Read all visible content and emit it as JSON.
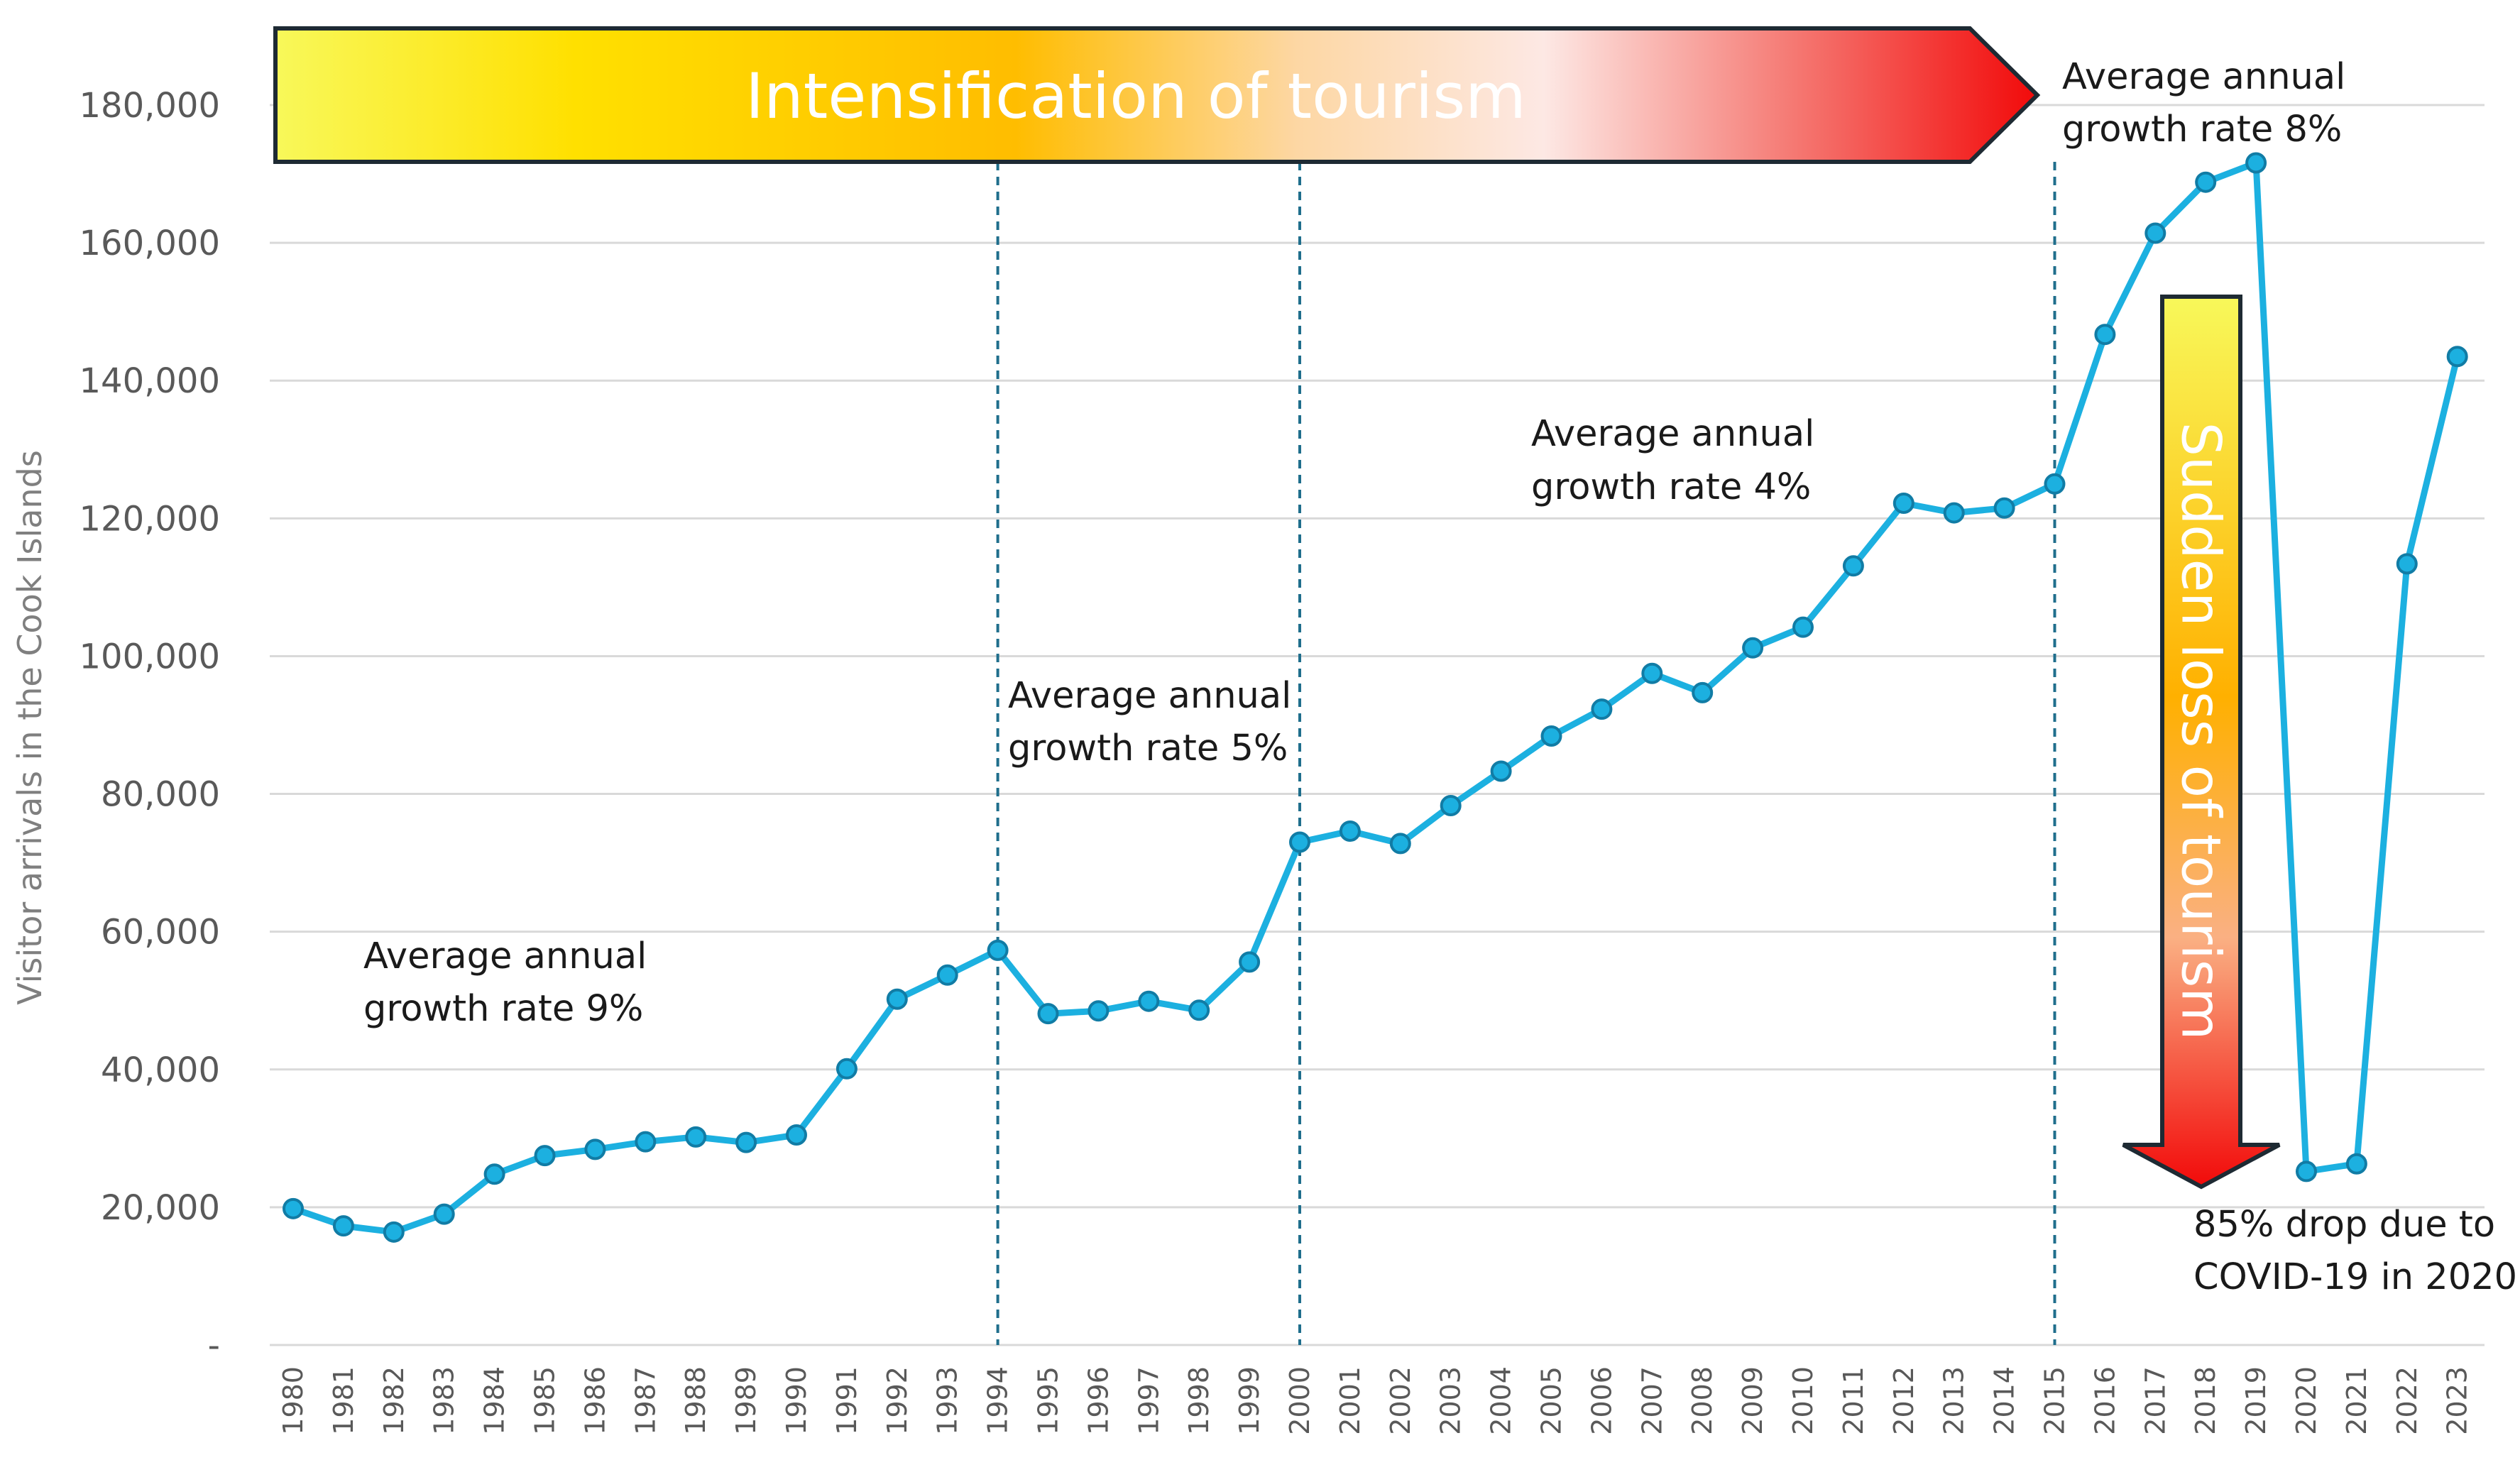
{
  "chart_data": {
    "type": "line",
    "title": "",
    "xlabel": "",
    "ylabel": "Visitor arrivals in the Cook Islands",
    "ylim": [
      0,
      190000
    ],
    "yticks": [
      0,
      20000,
      40000,
      60000,
      80000,
      100000,
      120000,
      140000,
      160000,
      180000
    ],
    "ytick_labels": [
      "-",
      "20,000",
      "40,000",
      "60,000",
      "80,000",
      "100,000",
      "120,000",
      "140,000",
      "160,000",
      "180,000"
    ],
    "grid": true,
    "categories": [
      "1980",
      "1981",
      "1982",
      "1983",
      "1984",
      "1985",
      "1986",
      "1987",
      "1988",
      "1989",
      "1990",
      "1991",
      "1992",
      "1993",
      "1994",
      "1995",
      "1996",
      "1997",
      "1998",
      "1999",
      "2000",
      "2001",
      "2002",
      "2003",
      "2004",
      "2005",
      "2006",
      "2007",
      "2008",
      "2009",
      "2010",
      "2011",
      "2012",
      "2013",
      "2014",
      "2015",
      "2016",
      "2017",
      "2018",
      "2019",
      "2020",
      "2021",
      "2022",
      "2023"
    ],
    "series": [
      {
        "name": "Visitor arrivals",
        "color": "#1CB0E0",
        "values": [
          19800,
          17300,
          16400,
          19000,
          24800,
          27500,
          28400,
          29500,
          30200,
          29400,
          30500,
          40100,
          50200,
          53700,
          57300,
          48100,
          48500,
          49900,
          48600,
          55600,
          73000,
          74600,
          72800,
          78300,
          83300,
          88400,
          92300,
          97500,
          94700,
          101200,
          104200,
          113100,
          122200,
          120800,
          121500,
          125000,
          146700,
          161400,
          168800,
          171600,
          25200,
          26300,
          113400,
          143500
        ]
      }
    ],
    "dividers": [
      "1994",
      "2000",
      "2015"
    ],
    "annotations": [
      {
        "lines": [
          "Average annual",
          "growth rate 9%"
        ]
      },
      {
        "lines": [
          "Average annual",
          "growth rate 5%"
        ]
      },
      {
        "lines": [
          "Average annual",
          "growth rate 4%"
        ]
      },
      {
        "lines": [
          "Average annual",
          "growth rate 8%"
        ]
      },
      {
        "lines": [
          "85% drop due to",
          "COVID-19 in 2020"
        ]
      }
    ],
    "banners": {
      "top": "Intensification of tourism",
      "side": "Sudden loss of tourism"
    }
  },
  "colors": {
    "line": "#1CB0E0",
    "marker_edge": "#117CA5",
    "divider": "#1F6E8C",
    "grid": "#D9D9D9",
    "banner_outline": "#1E2A33"
  }
}
